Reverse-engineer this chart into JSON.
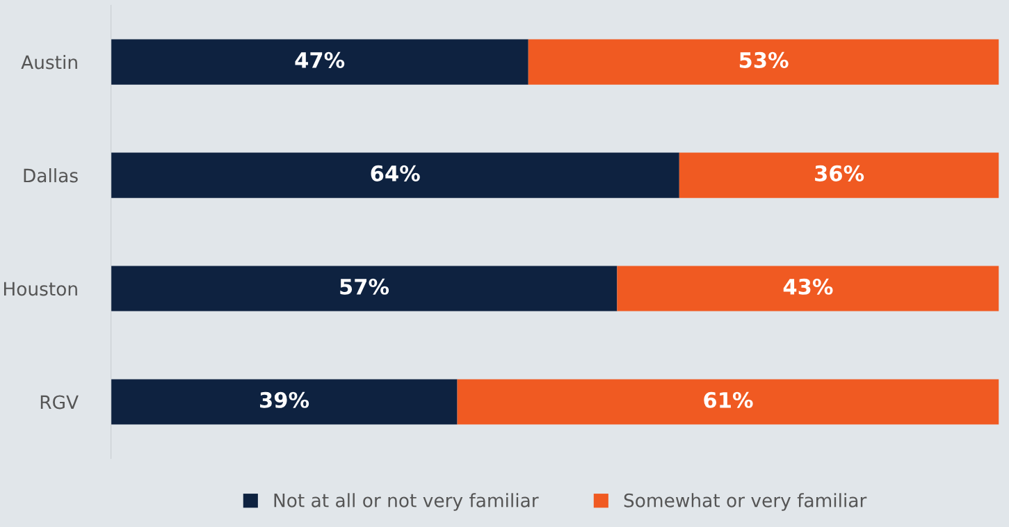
{
  "chart_data": {
    "type": "bar",
    "orientation": "horizontal",
    "stacked": true,
    "categories": [
      "Austin",
      "Dallas",
      "Houston",
      "RGV"
    ],
    "series": [
      {
        "name": "Not at all or not very familiar",
        "color": "#0e2240",
        "values": [
          47,
          64,
          57,
          39
        ],
        "value_labels": [
          "47%",
          "64%",
          "57%",
          "39%"
        ]
      },
      {
        "name": "Somewhat or very familiar",
        "color": "#f05a22",
        "values": [
          53,
          36,
          43,
          61
        ],
        "value_labels": [
          "53%",
          "36%",
          "43%",
          "61%"
        ]
      }
    ],
    "tick_labels": "y",
    "legend": "bottom",
    "grid": false
  }
}
